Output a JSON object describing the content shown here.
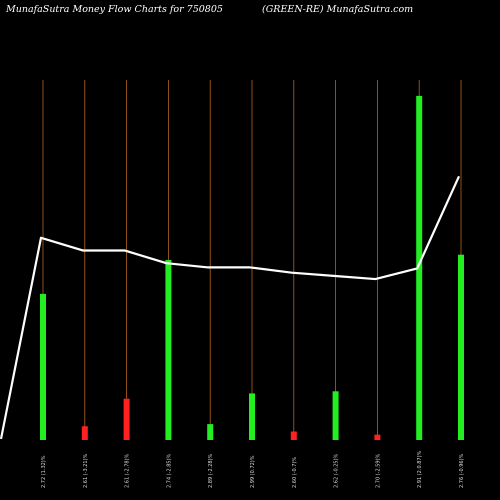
{
  "header": {
    "left_text": "MunafaSutra  Money Flow  Charts for 750805",
    "right_text": "(GREEN-RE) MunafaSutra.com"
  },
  "colors": {
    "background": "#000000",
    "gridline": "#b5651d",
    "up_bar": "#22ee22",
    "down_bar": "#ff2020",
    "line": "#ffffff"
  },
  "chart_data": {
    "type": "bar",
    "categories": [
      "2.72 (1.32)%",
      "2.61 (-3.21)%",
      "2.61 (-2.78)%",
      "2.74 (-2.85)%",
      "2.89 (-2.28)%",
      "2.99 (0.72)%",
      "2.60 (-0.7)%",
      "2.62 (-0.25)%",
      "2.70 (-2.59)%",
      "2.91 (2.0.87)%",
      "2.76 (-0.96)%"
    ],
    "bars": [
      {
        "value": 138,
        "direction": "up"
      },
      {
        "value": 13,
        "direction": "down"
      },
      {
        "value": 39,
        "direction": "down"
      },
      {
        "value": 170,
        "direction": "up"
      },
      {
        "value": 15,
        "direction": "up"
      },
      {
        "value": 44,
        "direction": "up"
      },
      {
        "value": 8,
        "direction": "down"
      },
      {
        "value": 46,
        "direction": "up"
      },
      {
        "value": 5,
        "direction": "down"
      },
      {
        "value": 325,
        "direction": "up"
      },
      {
        "value": 175,
        "direction": "up"
      }
    ],
    "line_series": [
      {
        "x": 0,
        "y": 1
      },
      {
        "x": 1,
        "y": 191
      },
      {
        "x": 2,
        "y": 179
      },
      {
        "x": 3,
        "y": 179
      },
      {
        "x": 4,
        "y": 167
      },
      {
        "x": 5,
        "y": 163
      },
      {
        "x": 6,
        "y": 163
      },
      {
        "x": 7,
        "y": 158
      },
      {
        "x": 8,
        "y": 155
      },
      {
        "x": 9,
        "y": 152
      },
      {
        "x": 10,
        "y": 162
      },
      {
        "x": 11,
        "y": 249
      }
    ],
    "ylim": [
      0,
      340
    ],
    "grid": true,
    "legend": "none"
  }
}
